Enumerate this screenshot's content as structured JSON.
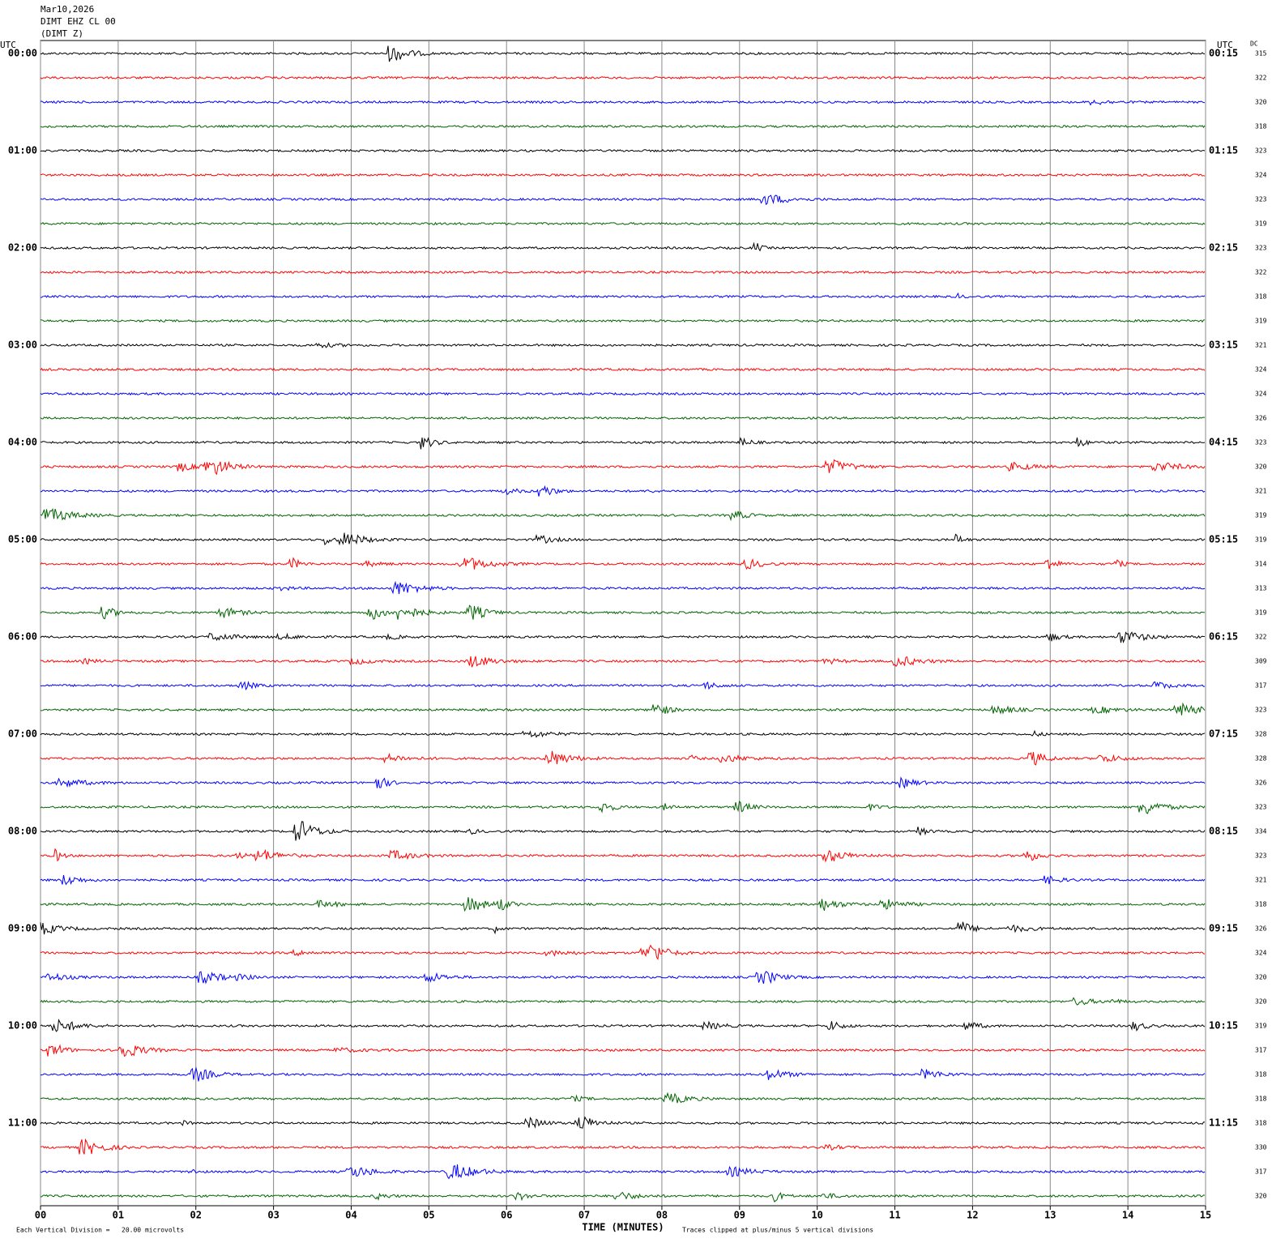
{
  "header": {
    "date": "Mar10,2026",
    "station": "DIMT EHZ CL 00",
    "channel": "(DIMT Z)"
  },
  "left_axis": {
    "title": "UTC",
    "labels": [
      "00:00",
      "01:00",
      "02:00",
      "03:00",
      "04:00",
      "05:00",
      "06:00",
      "07:00",
      "08:00",
      "09:00",
      "10:00",
      "11:00"
    ]
  },
  "right_axis": {
    "title": "UTC",
    "labels": [
      "00:15",
      "01:15",
      "02:15",
      "03:15",
      "04:15",
      "05:15",
      "06:15",
      "07:15",
      "08:15",
      "09:15",
      "10:15",
      "11:15"
    ]
  },
  "dc": {
    "title": "DC",
    "values": [
      315,
      322,
      320,
      318,
      323,
      324,
      323,
      319,
      323,
      322,
      318,
      319,
      321,
      324,
      324,
      326,
      323,
      320,
      321,
      319,
      319,
      314,
      313,
      319,
      322,
      309,
      317,
      323,
      328,
      328,
      326,
      323,
      334,
      323,
      321,
      318,
      326,
      324,
      320,
      320,
      319,
      317,
      318,
      318,
      318,
      330,
      317,
      320
    ]
  },
  "trace_colors": [
    "#000000",
    "#ff0000",
    "#0000ff",
    "#006400"
  ],
  "x_axis": {
    "ticks": [
      "00",
      "01",
      "02",
      "03",
      "04",
      "05",
      "06",
      "07",
      "08",
      "09",
      "10",
      "11",
      "12",
      "13",
      "14",
      "15"
    ],
    "title": "TIME (MINUTES)"
  },
  "footer": {
    "scale_note": "Each Vertical Division =   20.00 microvolts",
    "clip_note": "Traces clipped at plus/minus 5 vertical divisions"
  }
}
